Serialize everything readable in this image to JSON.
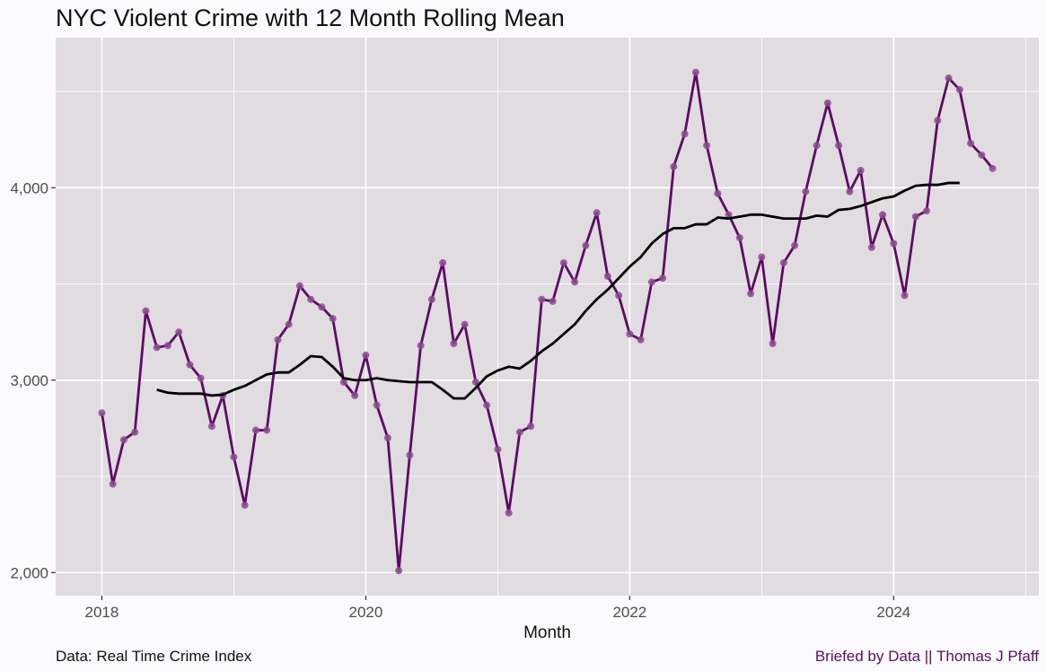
{
  "chart_data": {
    "type": "line",
    "title": "NYC Violent Crime with 12 Month Rolling Mean",
    "xlabel": "Month",
    "ylabel": "",
    "caption_left": "Data: Real Time Crime Index",
    "caption_right": "Briefed by Data || Thomas J Pfaff",
    "x_ticks": [
      {
        "value": 2018,
        "label": "2018"
      },
      {
        "value": 2020,
        "label": "2020"
      },
      {
        "value": 2022,
        "label": "2022"
      },
      {
        "value": 2024,
        "label": "2024"
      }
    ],
    "y_ticks": [
      {
        "value": 2000,
        "label": "2,000"
      },
      {
        "value": 3000,
        "label": "3,000"
      },
      {
        "value": 4000,
        "label": "4,000"
      }
    ],
    "xlim": [
      2017.65,
      2025.1
    ],
    "ylim": [
      1880,
      4780
    ],
    "grid": true,
    "colors": {
      "panel_background": "#e0dce0",
      "grid": "#ffffff",
      "monthly_line": "#5c0b63",
      "monthly_point": "#8c4a90",
      "rolling_line": "#000000"
    },
    "series": [
      {
        "key": "monthly",
        "start": "2018-01",
        "values": [
          2830,
          2460,
          2690,
          2730,
          3360,
          3170,
          3180,
          3250,
          3080,
          3010,
          2760,
          2920,
          2600,
          2350,
          2740,
          2740,
          3210,
          3290,
          3490,
          3420,
          3380,
          3320,
          2990,
          2920,
          3130,
          2870,
          2700,
          2010,
          2610,
          3180,
          3420,
          3610,
          3190,
          3290,
          2990,
          2870,
          2640,
          2310,
          2730,
          2760,
          3420,
          3410,
          3610,
          3510,
          3700,
          3870,
          3540,
          3440,
          3240,
          3210,
          3510,
          3530,
          4110,
          4280,
          4600,
          4220,
          3970,
          3860,
          3740,
          3450,
          3640,
          3190,
          3610,
          3700,
          3980,
          4220,
          4440,
          4220,
          3980,
          4090,
          3690,
          3860,
          3710,
          3440,
          3850,
          3880,
          4350,
          4570,
          4510,
          4230,
          4170,
          4100
        ]
      },
      {
        "key": "rolling_mean",
        "start": "2018-06",
        "values": [
          2950,
          2935,
          2930,
          2930,
          2930,
          2920,
          2925,
          2950,
          2970,
          3000,
          3030,
          3040,
          3040,
          3080,
          3125,
          3120,
          3070,
          3010,
          3000,
          3000,
          3010,
          3000,
          2995,
          2990,
          2990,
          2990,
          2950,
          2905,
          2905,
          2960,
          3020,
          3050,
          3070,
          3060,
          3100,
          3150,
          3190,
          3240,
          3290,
          3360,
          3420,
          3470,
          3530,
          3590,
          3640,
          3710,
          3760,
          3790,
          3790,
          3810,
          3810,
          3845,
          3840,
          3850,
          3860,
          3860,
          3850,
          3840,
          3840,
          3840,
          3855,
          3850,
          3885,
          3890,
          3905,
          3925,
          3945,
          3955,
          3985,
          4010,
          4015,
          4015,
          4025,
          4025
        ]
      }
    ]
  }
}
